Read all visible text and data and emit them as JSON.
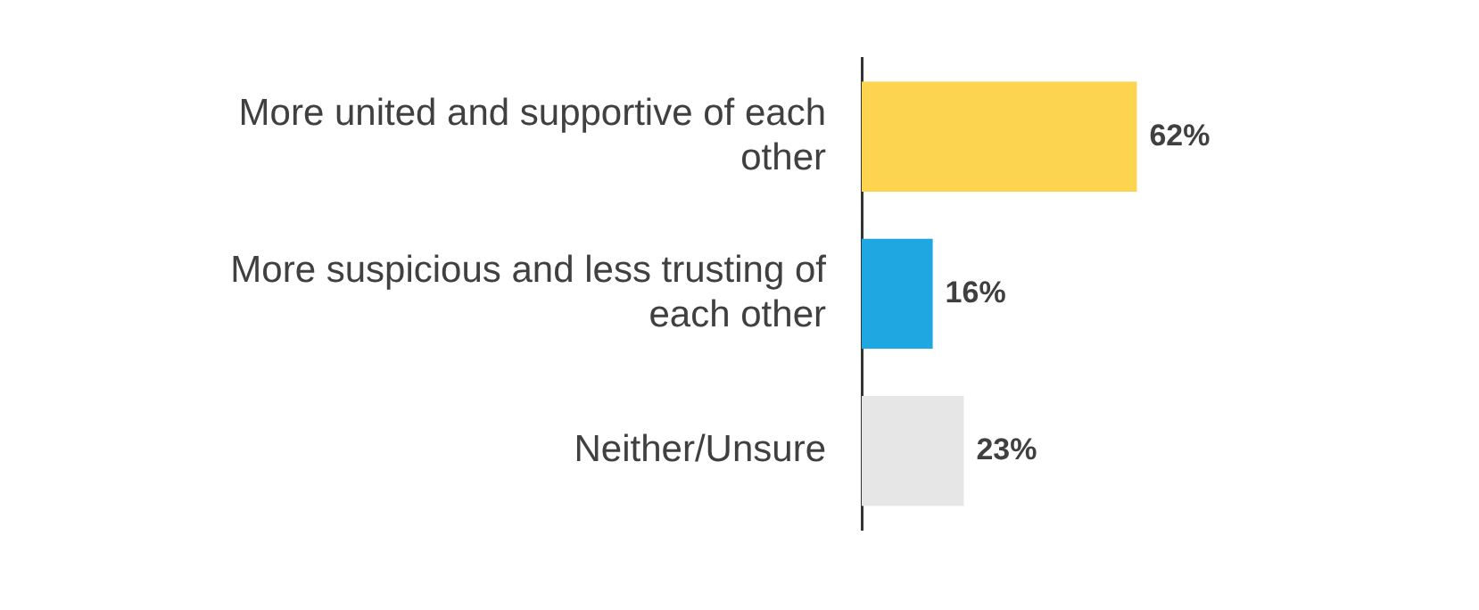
{
  "chart_data": {
    "type": "bar",
    "orientation": "horizontal",
    "categories": [
      "More united and supportive of each other",
      "More suspicious and less trusting of each other",
      "Neither/Unsure"
    ],
    "values": [
      62,
      16,
      23
    ],
    "colors": [
      "#fdd44f",
      "#1ea7e1",
      "#e6e6e6"
    ],
    "value_labels": [
      "62%",
      "16%",
      "23%"
    ],
    "tick_labels": "y",
    "legend": false
  }
}
